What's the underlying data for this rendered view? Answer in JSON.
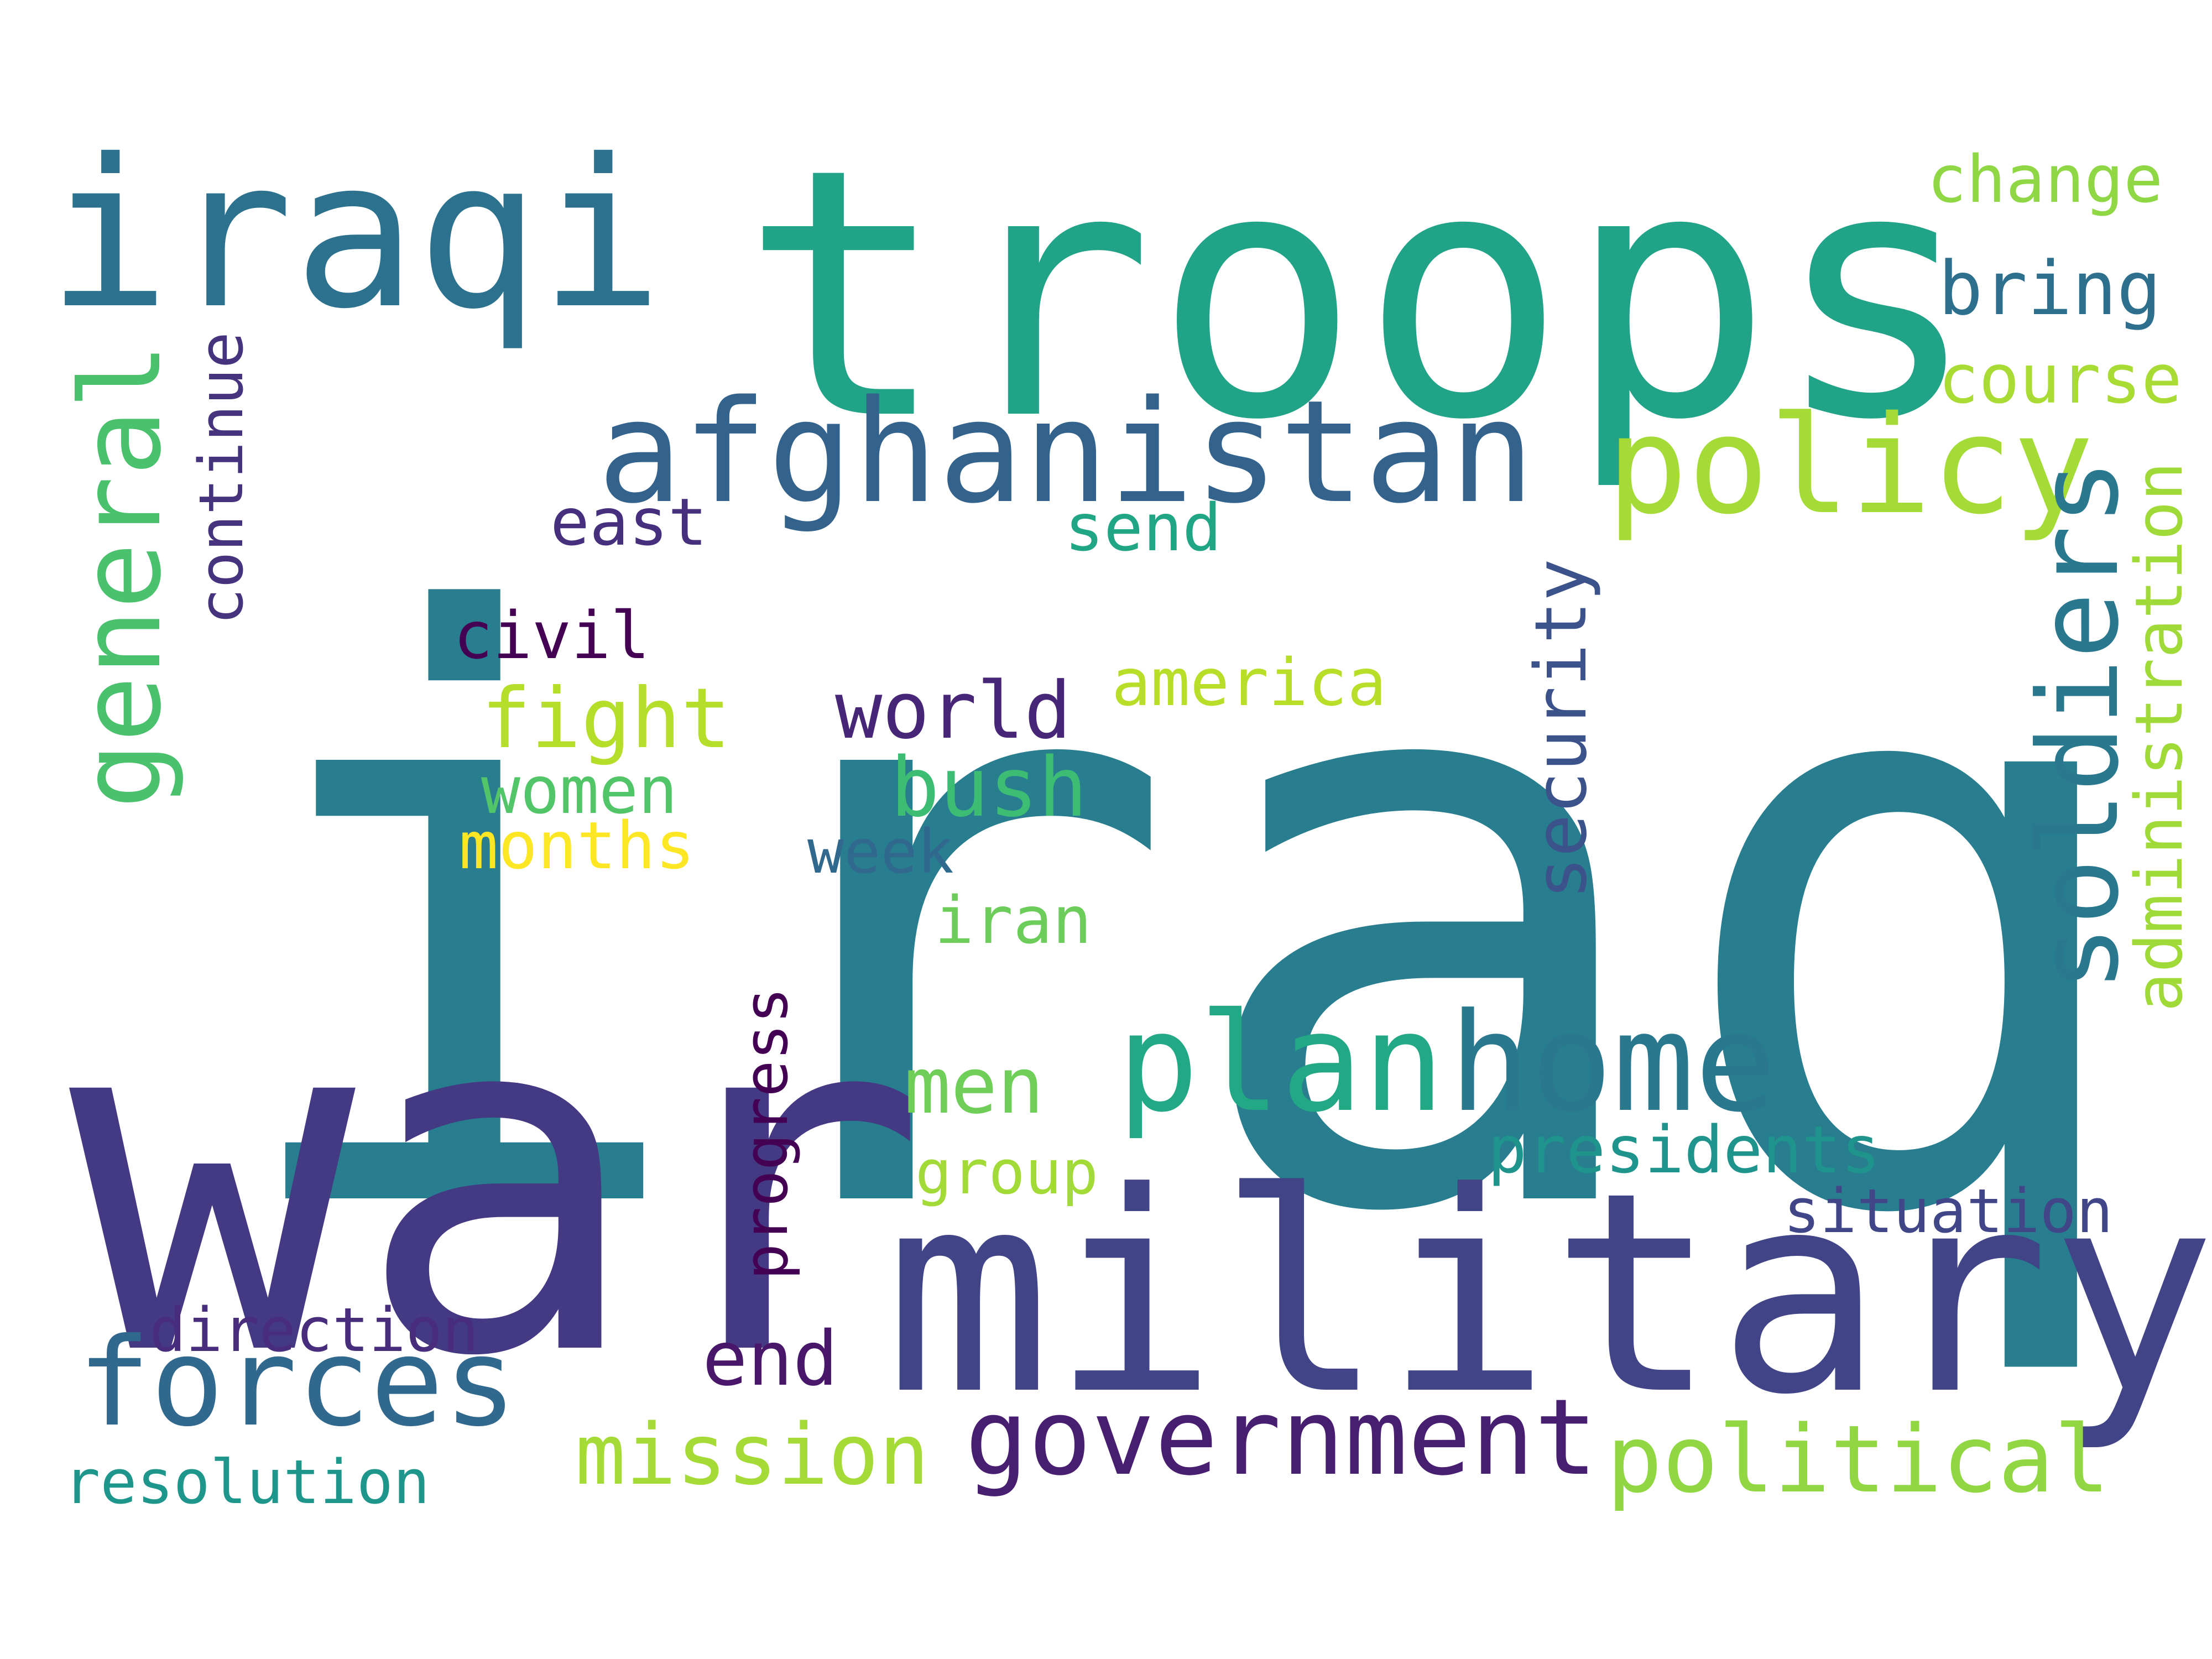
{
  "words": [
    {
      "text": "iraq",
      "color": "#287d8e",
      "orientation": "horizontal"
    },
    {
      "text": "war",
      "color": "#443983",
      "orientation": "horizontal"
    },
    {
      "text": "troops",
      "color": "#20a386",
      "orientation": "horizontal"
    },
    {
      "text": "military",
      "color": "#414487",
      "orientation": "horizontal"
    },
    {
      "text": "iraqi",
      "color": "#2c728e",
      "orientation": "horizontal"
    },
    {
      "text": "afghanistan",
      "color": "#33638d",
      "orientation": "horizontal"
    },
    {
      "text": "policy",
      "color": "#a5db36",
      "orientation": "horizontal"
    },
    {
      "text": "plan",
      "color": "#22a884",
      "orientation": "horizontal"
    },
    {
      "text": "home",
      "color": "#2a788e",
      "orientation": "horizontal"
    },
    {
      "text": "soldiers",
      "color": "#2a788e",
      "orientation": "vertical"
    },
    {
      "text": "general",
      "color": "#4ac16d",
      "orientation": "vertical"
    },
    {
      "text": "forces",
      "color": "#31688e",
      "orientation": "horizontal"
    },
    {
      "text": "government",
      "color": "#481f70",
      "orientation": "horizontal"
    },
    {
      "text": "political",
      "color": "#90d743",
      "orientation": "horizontal"
    },
    {
      "text": "mission",
      "color": "#a5db36",
      "orientation": "horizontal"
    },
    {
      "text": "change",
      "color": "#8fd744",
      "orientation": "horizontal"
    },
    {
      "text": "bring",
      "color": "#2e6f8e",
      "orientation": "horizontal"
    },
    {
      "text": "course",
      "color": "#a8db34",
      "orientation": "horizontal"
    },
    {
      "text": "administration",
      "color": "#a0da39",
      "orientation": "vertical"
    },
    {
      "text": "security",
      "color": "#3b528b",
      "orientation": "vertical"
    },
    {
      "text": "continue",
      "color": "#46337e",
      "orientation": "vertical"
    },
    {
      "text": "progress",
      "color": "#440154",
      "orientation": "vertical"
    },
    {
      "text": "east",
      "color": "#46307e",
      "orientation": "horizontal"
    },
    {
      "text": "send",
      "color": "#21a685",
      "orientation": "horizontal"
    },
    {
      "text": "civil",
      "color": "#440154",
      "orientation": "horizontal"
    },
    {
      "text": "america",
      "color": "#b8de29",
      "orientation": "horizontal"
    },
    {
      "text": "fight",
      "color": "#b5de2b",
      "orientation": "horizontal"
    },
    {
      "text": "world",
      "color": "#482677",
      "orientation": "horizontal"
    },
    {
      "text": "women",
      "color": "#52c569",
      "orientation": "horizontal"
    },
    {
      "text": "bush",
      "color": "#3dbc74",
      "orientation": "horizontal"
    },
    {
      "text": "months",
      "color": "#fde725",
      "orientation": "horizontal"
    },
    {
      "text": "week",
      "color": "#31688e",
      "orientation": "horizontal"
    },
    {
      "text": "iran",
      "color": "#6ccd5a",
      "orientation": "horizontal"
    },
    {
      "text": "men",
      "color": "#6ece58",
      "orientation": "horizontal"
    },
    {
      "text": "group",
      "color": "#a2da37",
      "orientation": "horizontal"
    },
    {
      "text": "presidents",
      "color": "#1f948c",
      "orientation": "horizontal"
    },
    {
      "text": "situation",
      "color": "#404688",
      "orientation": "horizontal"
    },
    {
      "text": "direction",
      "color": "#472d7b",
      "orientation": "horizontal"
    },
    {
      "text": "end",
      "color": "#481769",
      "orientation": "horizontal"
    },
    {
      "text": "resolution",
      "color": "#1f968b",
      "orientation": "horizontal"
    }
  ]
}
